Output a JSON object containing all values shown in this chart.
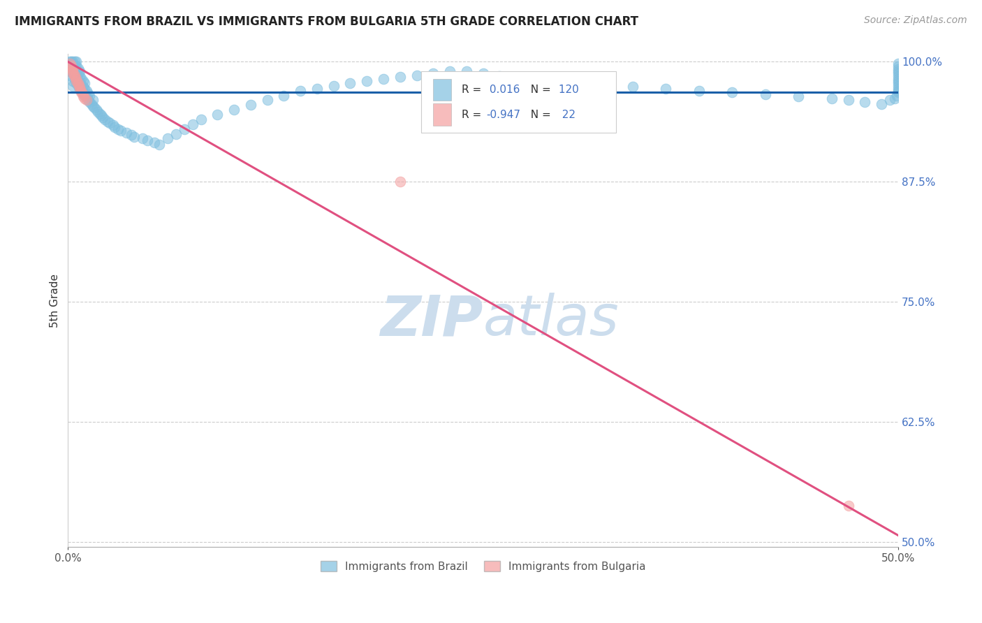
{
  "title": "IMMIGRANTS FROM BRAZIL VS IMMIGRANTS FROM BULGARIA 5TH GRADE CORRELATION CHART",
  "source": "Source: ZipAtlas.com",
  "ylabel": "5th Grade",
  "legend_brazil": "Immigrants from Brazil",
  "legend_bulgaria": "Immigrants from Bulgaria",
  "brazil_R": 0.016,
  "brazil_N": 120,
  "bulgaria_R": -0.947,
  "bulgaria_N": 22,
  "xlim": [
    0.0,
    0.5
  ],
  "ylim": [
    0.495,
    1.008
  ],
  "yticks": [
    0.5,
    0.625,
    0.75,
    0.875,
    1.0
  ],
  "ytick_labels": [
    "50.0%",
    "62.5%",
    "75.0%",
    "87.5%",
    "100.0%"
  ],
  "xticks": [
    0.0,
    0.5
  ],
  "xtick_labels": [
    "0.0%",
    "50.0%"
  ],
  "brazil_color": "#7fbfdf",
  "bulgaria_color": "#f4a0a0",
  "brazil_line_color": "#1a5fa8",
  "bulgaria_line_color": "#e05080",
  "background_color": "#ffffff",
  "watermark_color": "#ccdded",
  "brazil_scatter_x": [
    0.001,
    0.001,
    0.001,
    0.002,
    0.002,
    0.002,
    0.002,
    0.003,
    0.003,
    0.003,
    0.003,
    0.003,
    0.004,
    0.004,
    0.004,
    0.004,
    0.005,
    0.005,
    0.005,
    0.005,
    0.005,
    0.006,
    0.006,
    0.006,
    0.006,
    0.007,
    0.007,
    0.007,
    0.007,
    0.008,
    0.008,
    0.008,
    0.009,
    0.009,
    0.009,
    0.01,
    0.01,
    0.01,
    0.011,
    0.011,
    0.012,
    0.012,
    0.013,
    0.013,
    0.014,
    0.015,
    0.015,
    0.016,
    0.017,
    0.018,
    0.019,
    0.02,
    0.021,
    0.022,
    0.024,
    0.025,
    0.027,
    0.028,
    0.03,
    0.032,
    0.035,
    0.038,
    0.04,
    0.045,
    0.048,
    0.052,
    0.055,
    0.06,
    0.065,
    0.07,
    0.075,
    0.08,
    0.09,
    0.1,
    0.11,
    0.12,
    0.13,
    0.14,
    0.15,
    0.16,
    0.17,
    0.18,
    0.19,
    0.2,
    0.21,
    0.22,
    0.23,
    0.24,
    0.25,
    0.26,
    0.27,
    0.28,
    0.3,
    0.32,
    0.34,
    0.36,
    0.38,
    0.4,
    0.42,
    0.44,
    0.46,
    0.47,
    0.48,
    0.49,
    0.495,
    0.498,
    0.499,
    0.5,
    0.5,
    0.5,
    0.5,
    0.5,
    0.5,
    0.5,
    0.5,
    0.5,
    0.5,
    0.5,
    0.5,
    0.5
  ],
  "brazil_scatter_y": [
    0.99,
    0.998,
    1.0,
    0.985,
    0.992,
    0.998,
    1.0,
    0.98,
    0.988,
    0.994,
    1.0,
    0.975,
    0.982,
    0.99,
    0.995,
    1.0,
    0.978,
    0.985,
    0.99,
    0.996,
    1.0,
    0.975,
    0.98,
    0.988,
    0.993,
    0.972,
    0.978,
    0.985,
    0.99,
    0.97,
    0.976,
    0.983,
    0.968,
    0.974,
    0.98,
    0.965,
    0.972,
    0.978,
    0.963,
    0.97,
    0.96,
    0.967,
    0.958,
    0.965,
    0.956,
    0.954,
    0.96,
    0.952,
    0.95,
    0.948,
    0.946,
    0.944,
    0.942,
    0.94,
    0.938,
    0.936,
    0.934,
    0.932,
    0.93,
    0.928,
    0.926,
    0.924,
    0.922,
    0.92,
    0.918,
    0.916,
    0.914,
    0.92,
    0.925,
    0.93,
    0.935,
    0.94,
    0.945,
    0.95,
    0.955,
    0.96,
    0.965,
    0.97,
    0.972,
    0.975,
    0.978,
    0.98,
    0.982,
    0.984,
    0.986,
    0.988,
    0.99,
    0.99,
    0.988,
    0.985,
    0.982,
    0.98,
    0.978,
    0.976,
    0.974,
    0.972,
    0.97,
    0.968,
    0.966,
    0.964,
    0.962,
    0.96,
    0.958,
    0.956,
    0.96,
    0.962,
    0.965,
    0.968,
    0.97,
    0.972,
    0.975,
    0.978,
    0.98,
    0.982,
    0.985,
    0.988,
    0.99,
    0.992,
    0.995,
    0.998
  ],
  "bulgaria_scatter_x": [
    0.001,
    0.002,
    0.002,
    0.003,
    0.003,
    0.003,
    0.004,
    0.004,
    0.005,
    0.005,
    0.006,
    0.006,
    0.007,
    0.007,
    0.008,
    0.008,
    0.009,
    0.009,
    0.01,
    0.011,
    0.2,
    0.47
  ],
  "bulgaria_scatter_y": [
    0.998,
    0.996,
    0.994,
    0.992,
    0.99,
    0.988,
    0.986,
    0.984,
    0.982,
    0.98,
    0.978,
    0.976,
    0.974,
    0.972,
    0.97,
    0.968,
    0.966,
    0.964,
    0.962,
    0.96,
    0.875,
    0.538
  ],
  "brazil_trend_x": [
    0.0,
    0.5
  ],
  "brazil_trend_y": [
    0.968,
    0.968
  ],
  "bulgaria_trend_x": [
    0.0,
    0.5
  ],
  "bulgaria_trend_y": [
    1.0,
    0.507
  ]
}
